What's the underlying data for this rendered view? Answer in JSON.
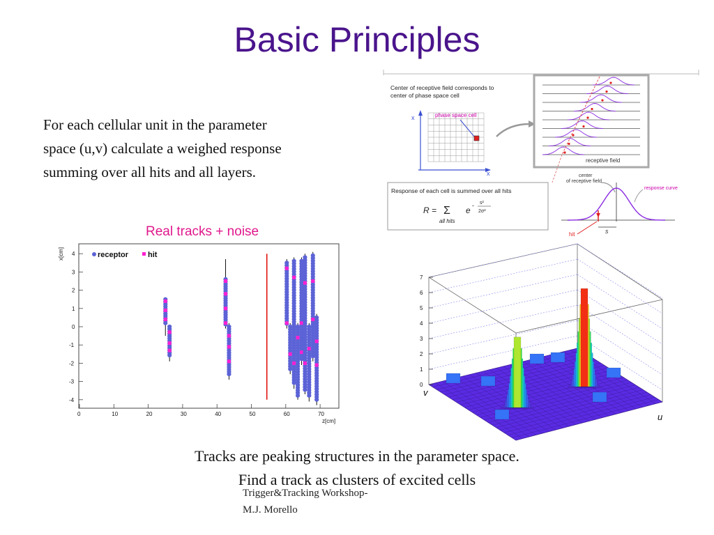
{
  "slide": {
    "title": "Basic Principles",
    "intro_lines": [
      "For each cellular unit  in the parameter",
      "space (u,v) calculate a weighed response",
      "summing over all hits and all layers."
    ],
    "caption_lines": [
      "Tracks are peaking structures in the parameter space.",
      "Find a track as clusters of excited cells"
    ],
    "footer_lines": [
      "Trigger&Tracking Workshop-",
      "M.J. Morello"
    ]
  },
  "diagram": {
    "center_text_1": "Center of receptive field corresponds to",
    "center_text_2": "center of phase space cell",
    "phase_space_label": "phase space cell",
    "receptive_field_label": "receptive field",
    "axis_x_label": "x",
    "axis_y_label": "x",
    "response_text": "Response of each cell is summed over all hits",
    "formula_r": "R =",
    "formula_sum": "Σ",
    "formula_sub": "all hits",
    "formula_e": "e",
    "formula_exp_num": "s²",
    "formula_exp_den": "2σ²",
    "center_field_label_1": "center",
    "center_field_label_2": "of receptive field",
    "response_curve_label": "response curve",
    "hit_label": "hit",
    "s_label": "s"
  },
  "chart_data": [
    {
      "type": "scatter",
      "title": "Real tracks + noise",
      "xlabel": "z[cm]",
      "ylabel": "x[cm]",
      "xlim": [
        0,
        75
      ],
      "ylim": [
        -4.5,
        4.5
      ],
      "x_ticks": [
        "0",
        "10",
        "20",
        "30",
        "40",
        "50",
        "60",
        "70"
      ],
      "y_ticks": [
        "-4",
        "-3",
        "-2",
        "-1",
        "0",
        "1",
        "2",
        "3",
        "4"
      ],
      "legend": [
        "receptor",
        "hit"
      ],
      "legend_position": "top-left",
      "colors": {
        "receptor": "#5c63d6",
        "hit": "#ff1fd2",
        "line": "#e01010"
      },
      "red_line_z": 54.5
    },
    {
      "type": "lego3d",
      "z_ticks": [
        "0",
        "1",
        "2",
        "3",
        "4",
        "5",
        "6",
        "7"
      ],
      "u_label": "u",
      "v_label": "v",
      "peaks": [
        {
          "name": "peak-left",
          "max": 4.6
        },
        {
          "name": "peak-right",
          "max": 6.4
        }
      ]
    }
  ]
}
